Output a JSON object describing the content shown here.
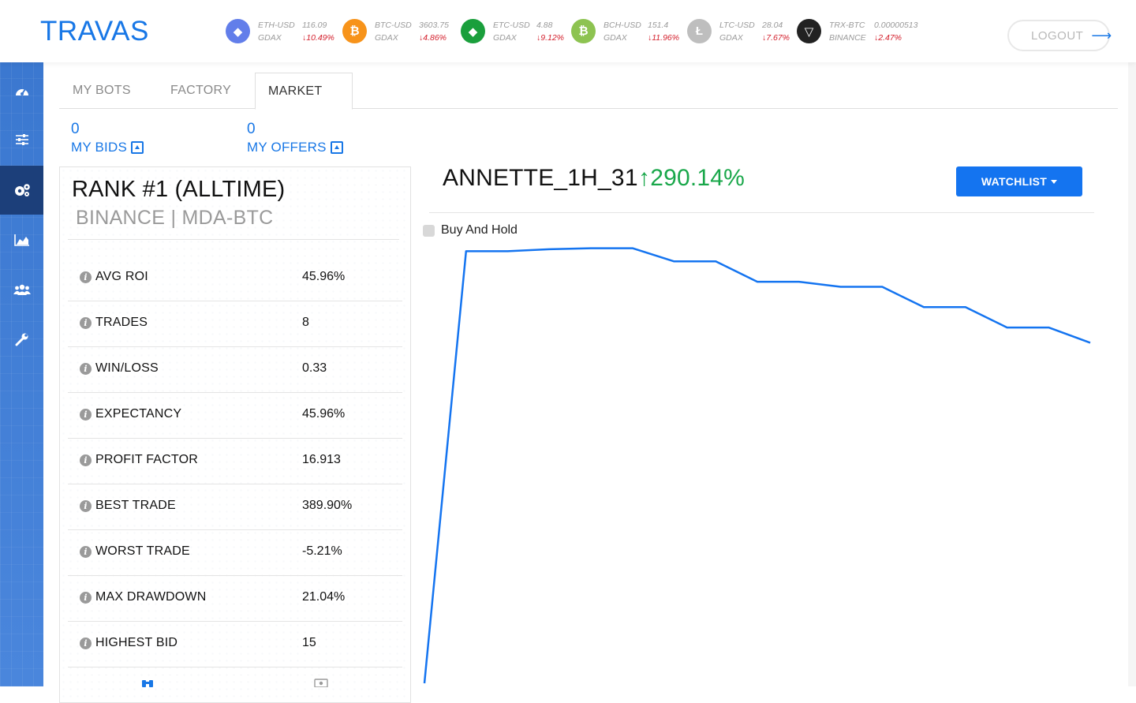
{
  "app": {
    "logo": "TRAVAS"
  },
  "ticker": [
    {
      "pair": "ETH-USD",
      "price": "116.09",
      "exchange": "GDAX",
      "change": "↓10.49%",
      "icon": "ethereum-icon",
      "color": "#627eea"
    },
    {
      "pair": "BTC-USD",
      "price": "3603.75",
      "exchange": "GDAX",
      "change": "↓4.86%",
      "icon": "bitcoin-icon",
      "color": "#f7931a"
    },
    {
      "pair": "ETC-USD",
      "price": "4.88",
      "exchange": "GDAX",
      "change": "↓9.12%",
      "icon": "ethereum-classic-icon",
      "color": "#1a9f3c"
    },
    {
      "pair": "BCH-USD",
      "price": "151.4",
      "exchange": "GDAX",
      "change": "↓11.96%",
      "icon": "bitcoin-cash-icon",
      "color": "#8dc351"
    },
    {
      "pair": "LTC-USD",
      "price": "28.04",
      "exchange": "GDAX",
      "change": "↓7.67%",
      "icon": "litecoin-icon",
      "color": "#bebebe"
    },
    {
      "pair": "TRX-BTC",
      "price": "0.00000513",
      "exchange": "BINANCE",
      "change": "↓2.47%",
      "icon": "tron-icon",
      "color": "#222222"
    }
  ],
  "header": {
    "logout_label": "LOGOUT"
  },
  "sidebar": {
    "items": [
      {
        "icon": "dashboard-gauge-icon"
      },
      {
        "icon": "sliders-icon"
      },
      {
        "icon": "gears-icon",
        "active": true
      },
      {
        "icon": "area-chart-icon"
      },
      {
        "icon": "users-icon"
      },
      {
        "icon": "wrench-icon"
      }
    ]
  },
  "tabs": [
    {
      "label": "MY BOTS"
    },
    {
      "label": "FACTORY"
    },
    {
      "label": "MARKET",
      "active": true
    }
  ],
  "counters": {
    "bids": {
      "count": "0",
      "label": "MY BIDS"
    },
    "offers": {
      "count": "0",
      "label": "MY OFFERS"
    }
  },
  "stats": {
    "rank_title": "RANK #1 (ALLTIME)",
    "market": "BINANCE | MDA-BTC",
    "rows": [
      {
        "name": "AVG ROI",
        "value": "45.96%"
      },
      {
        "name": "TRADES",
        "value": "8"
      },
      {
        "name": "WIN/LOSS",
        "value": "0.33"
      },
      {
        "name": "EXPECTANCY",
        "value": "45.96%"
      },
      {
        "name": "PROFIT FACTOR",
        "value": "16.913"
      },
      {
        "name": "BEST TRADE",
        "value": "389.90%"
      },
      {
        "name": "WORST TRADE",
        "value": "-5.21%"
      },
      {
        "name": "MAX DRAWDOWN",
        "value": "21.04%"
      },
      {
        "name": "HIGHEST BID",
        "value": "15"
      }
    ]
  },
  "bot": {
    "name": "ANNETTE_1H_31",
    "roi": "↑290.14%",
    "watchlist_label": "WATCHLIST",
    "legend_label": "Buy And Hold"
  },
  "chart_data": {
    "type": "line",
    "series": [
      {
        "name": "Buy And Hold",
        "color": "#1474f0",
        "values": [
          -35,
          390,
          390,
          392,
          393,
          393,
          380,
          380,
          360,
          360,
          355,
          355,
          335,
          335,
          315,
          315,
          300
        ]
      }
    ],
    "ylim": [
      -35,
      395
    ]
  }
}
